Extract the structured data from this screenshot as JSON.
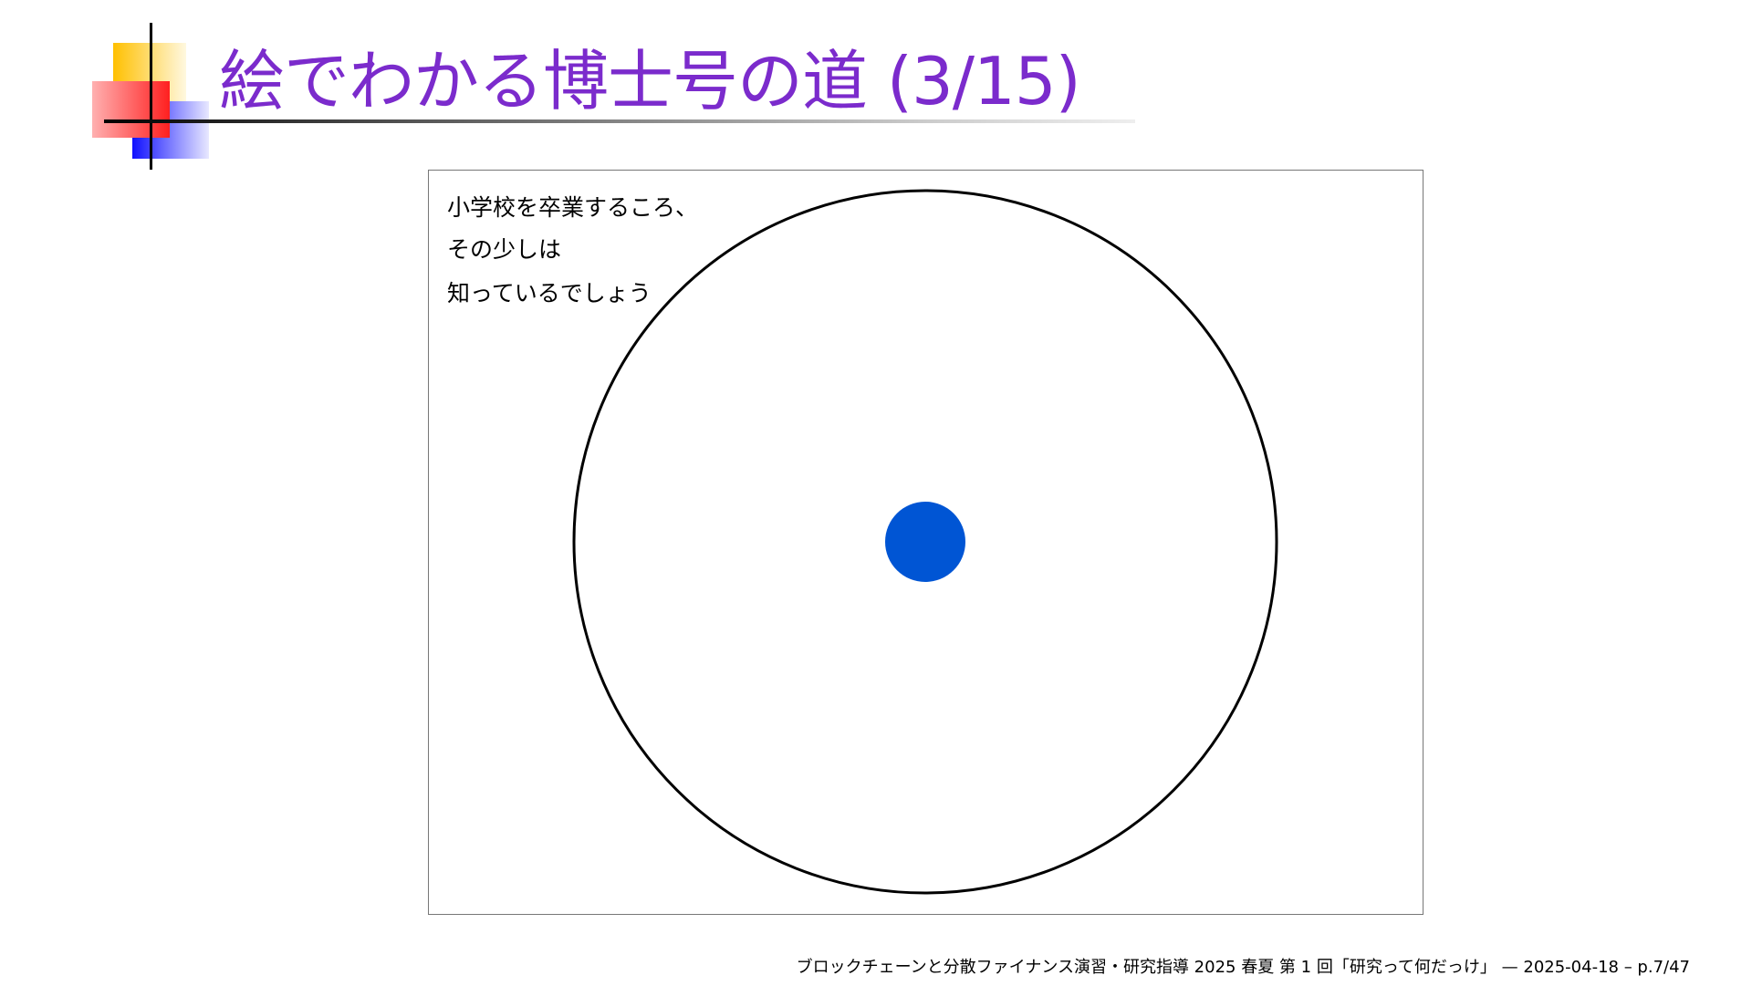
{
  "title": "絵でわかる博士号の道 (3/15)",
  "figure": {
    "lines": [
      "小学校を卒業するころ、",
      "その少しは",
      "知っているでしょう"
    ],
    "dot_color": "#0055d4",
    "circle_color": "#000000"
  },
  "footer": "ブロックチェーンと分散ファイナンス演習・研究指導 2025 春夏 第 1 回「研究って何だっけ」 — 2025-04-18 – p.7/47",
  "colors": {
    "title": "#7b2bcc"
  }
}
